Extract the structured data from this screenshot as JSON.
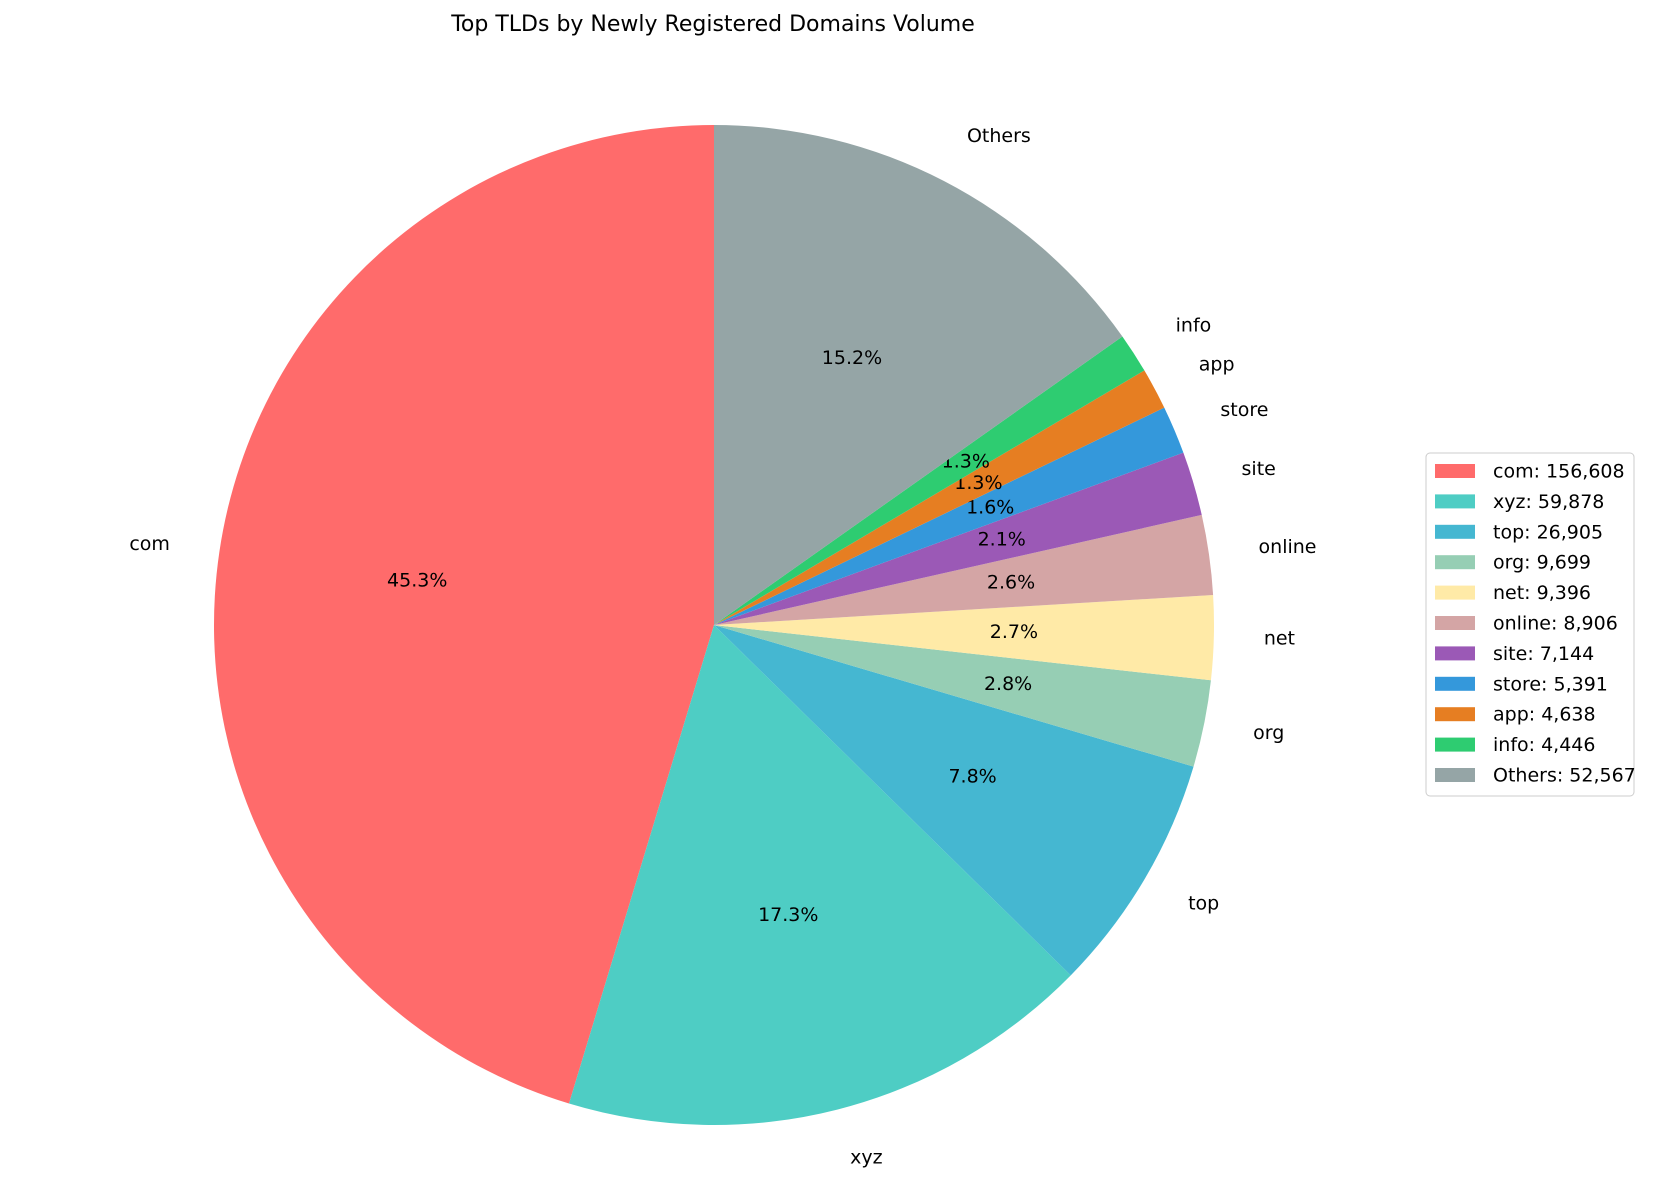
{
  "chart_data": {
    "type": "pie",
    "title": "Top TLDs by Newly Registered Domains Volume",
    "categories": [
      "com",
      "xyz",
      "top",
      "org",
      "net",
      "online",
      "site",
      "store",
      "app",
      "info",
      "Others"
    ],
    "values": [
      156608,
      59878,
      26905,
      9699,
      9396,
      8906,
      7144,
      5391,
      4638,
      4446,
      52567
    ],
    "percent_labels": [
      "45.3%",
      "17.3%",
      "7.8%",
      "2.8%",
      "2.7%",
      "2.6%",
      "2.1%",
      "1.6%",
      "1.3%",
      "1.3%",
      "15.2%"
    ],
    "legend_labels": [
      "com: 156,608",
      "xyz: 59,878",
      "top: 26,905",
      "org: 9,699",
      "net: 9,396",
      "online: 8,906",
      "site: 7,144",
      "store: 5,391",
      "app: 4,638",
      "info: 4,446",
      "Others: 52,567"
    ],
    "colors": [
      "#ff6b6b",
      "#4ecdc4",
      "#45b7d1",
      "#96ceb4",
      "#ffeaa7",
      "#d4a5a5",
      "#9b59b6",
      "#3498db",
      "#e67e22",
      "#2ecc71",
      "#95a5a6"
    ],
    "start_angle": 90,
    "legend": "right"
  }
}
